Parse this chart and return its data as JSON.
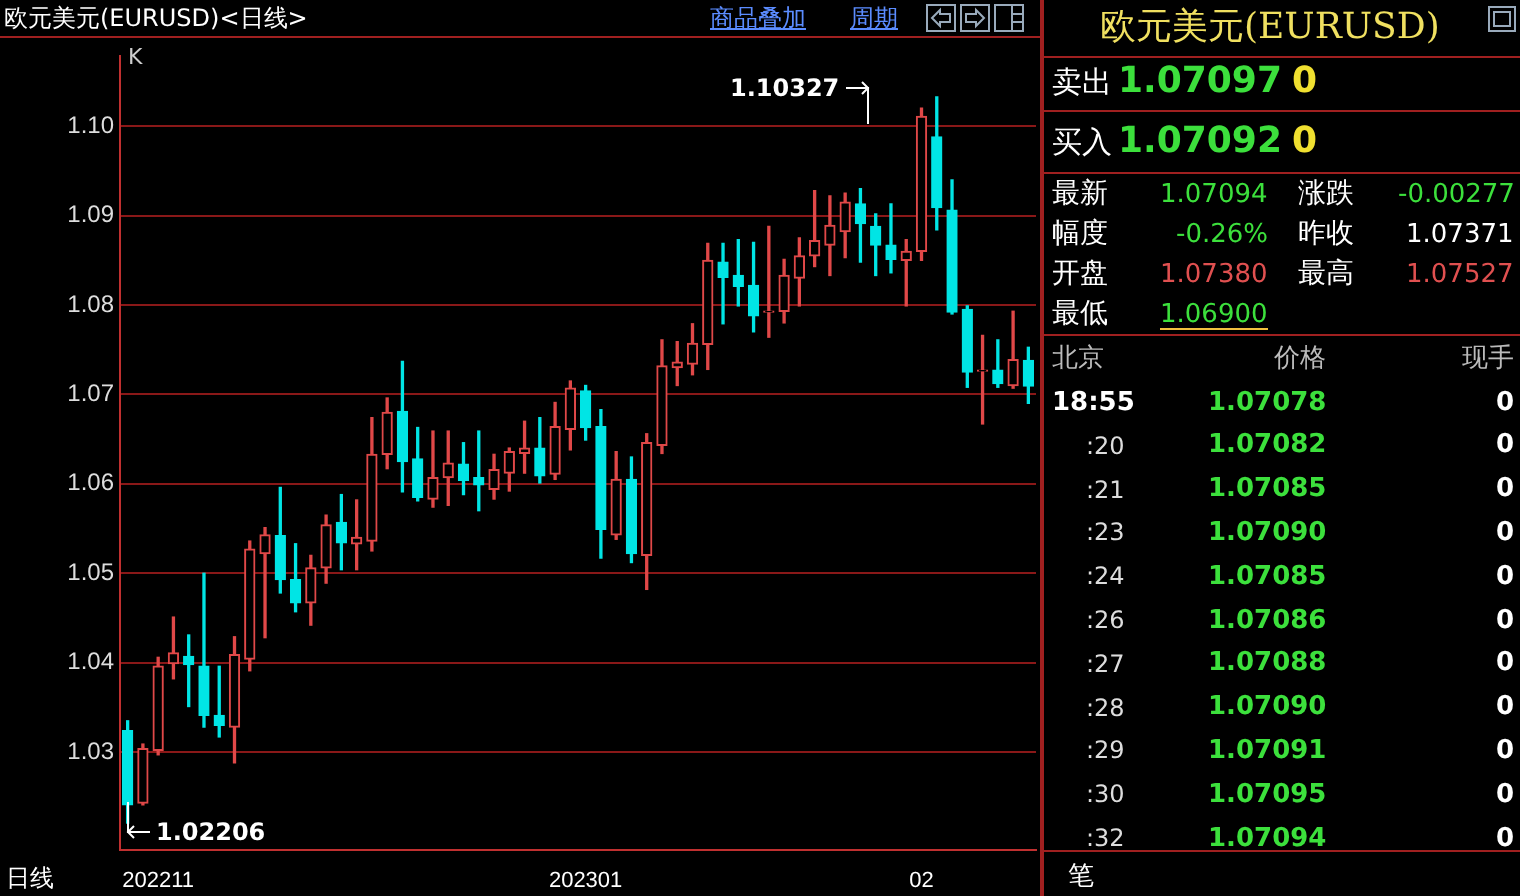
{
  "chart_data": [
    {
      "type": "candlestick",
      "title": "欧元美元(EURUSD)<日线>",
      "categories": [
        null,
        null,
        "202211",
        null,
        null,
        null,
        null,
        null,
        null,
        null,
        null,
        null,
        null,
        null,
        null,
        null,
        null,
        null,
        null,
        null,
        null,
        null,
        null,
        null,
        null,
        null,
        null,
        null,
        null,
        null,
        "202301",
        null,
        null,
        null,
        null,
        null,
        null,
        null,
        null,
        null,
        null,
        null,
        null,
        null,
        null,
        null,
        null,
        null,
        null,
        null,
        null,
        null,
        "02",
        null,
        null,
        null,
        null,
        null,
        null,
        null
      ],
      "ohlc": [
        [
          1.0324,
          1.0335,
          1.02206,
          1.0241
        ],
        [
          1.0243,
          1.0309,
          1.0241,
          1.0304
        ],
        [
          1.0302,
          1.0406,
          1.0297,
          1.0396
        ],
        [
          1.0399,
          1.0451,
          1.0382,
          1.0411
        ],
        [
          1.0407,
          1.0431,
          1.0351,
          1.0398
        ],
        [
          1.0396,
          1.05,
          1.0328,
          1.0341
        ],
        [
          1.0341,
          1.0396,
          1.0317,
          1.033
        ],
        [
          1.0328,
          1.0429,
          1.0288,
          1.0409
        ],
        [
          1.0404,
          1.0536,
          1.0391,
          1.0527
        ],
        [
          1.0522,
          1.0551,
          1.0428,
          1.0543
        ],
        [
          1.0542,
          1.0596,
          1.0478,
          1.0493
        ],
        [
          1.0493,
          1.0533,
          1.0457,
          1.0467
        ],
        [
          1.0467,
          1.052,
          1.0442,
          1.0506
        ],
        [
          1.0506,
          1.0565,
          1.0489,
          1.0554
        ],
        [
          1.0557,
          1.0588,
          1.0504,
          1.0534
        ],
        [
          1.0533,
          1.0582,
          1.0504,
          1.054
        ],
        [
          1.0536,
          1.0674,
          1.0525,
          1.0633
        ],
        [
          1.0633,
          1.0696,
          1.0617,
          1.068
        ],
        [
          1.0681,
          1.0737,
          1.0591,
          1.0625
        ],
        [
          1.0628,
          1.0663,
          1.0581,
          1.0585
        ],
        [
          1.0583,
          1.0659,
          1.0574,
          1.0607
        ],
        [
          1.0607,
          1.0659,
          1.0576,
          1.0623
        ],
        [
          1.0622,
          1.0646,
          1.0588,
          1.0604
        ],
        [
          1.0607,
          1.0659,
          1.057,
          1.0599
        ],
        [
          1.0594,
          1.0633,
          1.0583,
          1.0616
        ],
        [
          1.0612,
          1.064,
          1.0592,
          1.0636
        ],
        [
          1.0634,
          1.067,
          1.0612,
          1.064
        ],
        [
          1.064,
          1.0674,
          1.0601,
          1.0609
        ],
        [
          1.0611,
          1.0691,
          1.0605,
          1.0664
        ],
        [
          1.0661,
          1.0715,
          1.0638,
          1.0707
        ],
        [
          1.0704,
          1.071,
          1.0649,
          1.0663
        ],
        [
          1.0664,
          1.0683,
          1.0517,
          1.0549
        ],
        [
          1.0543,
          1.0636,
          1.0538,
          1.0605
        ],
        [
          1.0605,
          1.063,
          1.0512,
          1.0522
        ],
        [
          1.052,
          1.0656,
          1.0482,
          1.0646
        ],
        [
          1.0643,
          1.0761,
          1.0634,
          1.0732
        ],
        [
          1.073,
          1.0759,
          1.071,
          1.0736
        ],
        [
          1.0734,
          1.0779,
          1.0722,
          1.0757
        ],
        [
          1.0756,
          1.0869,
          1.0728,
          1.085
        ],
        [
          1.0848,
          1.0869,
          1.0779,
          1.0831
        ],
        [
          1.0833,
          1.0873,
          1.0799,
          1.0821
        ],
        [
          1.0822,
          1.087,
          1.077,
          1.0788
        ],
        [
          1.0792,
          1.0888,
          1.0764,
          1.0793
        ],
        [
          1.0793,
          1.0851,
          1.078,
          1.0833
        ],
        [
          1.083,
          1.0875,
          1.0799,
          1.0855
        ],
        [
          1.0855,
          1.0928,
          1.0843,
          1.0872
        ],
        [
          1.0867,
          1.0922,
          1.0833,
          1.0889
        ],
        [
          1.0882,
          1.0925,
          1.0853,
          1.0915
        ],
        [
          1.0913,
          1.093,
          1.0848,
          1.0891
        ],
        [
          1.0888,
          1.0902,
          1.0833,
          1.0867
        ],
        [
          1.0867,
          1.0913,
          1.0836,
          1.0851
        ],
        [
          1.085,
          1.0873,
          1.0799,
          1.086
        ],
        [
          1.086,
          1.102,
          1.085,
          1.1011
        ],
        [
          1.0988,
          1.10327,
          1.0884,
          1.0909
        ],
        [
          1.0906,
          1.094,
          1.079,
          1.0792
        ],
        [
          1.0795,
          1.0799,
          1.0708,
          1.0725
        ],
        [
          1.0726,
          1.0766,
          1.0667,
          1.0727
        ],
        [
          1.0727,
          1.0761,
          1.0708,
          1.0712
        ],
        [
          1.071,
          1.0793,
          1.0707,
          1.0739
        ],
        [
          1.0738,
          1.07527,
          1.069,
          1.07094
        ]
      ],
      "colors": [
        "#00e5e5",
        "#e04848",
        "#e04848",
        "#e04848",
        "#00e5e5",
        "#00e5e5",
        "#00e5e5",
        "#e04848",
        "#e04848",
        "#e04848",
        "#00e5e5",
        "#00e5e5",
        "#e04848",
        "#e04848",
        "#00e5e5",
        "#e04848",
        "#e04848",
        "#e04848",
        "#00e5e5",
        "#00e5e5",
        "#e04848",
        "#e04848",
        "#00e5e5",
        "#00e5e5",
        "#e04848",
        "#e04848",
        "#e04848",
        "#00e5e5",
        "#e04848",
        "#e04848",
        "#00e5e5",
        "#00e5e5",
        "#e04848",
        "#00e5e5",
        "#e04848",
        "#e04848",
        "#e04848",
        "#e04848",
        "#e04848",
        "#00e5e5",
        "#00e5e5",
        "#00e5e5",
        "#e04848",
        "#e04848",
        "#e04848",
        "#e04848",
        "#e04848",
        "#e04848",
        "#00e5e5",
        "#00e5e5",
        "#00e5e5",
        "#e04848",
        "#e04848",
        "#00e5e5",
        "#00e5e5",
        "#00e5e5",
        "#e04848",
        "#00e5e5",
        "#e04848",
        "#00e5e5"
      ],
      "ylim": [
        1.0191,
        1.1078
      ],
      "yticks": [
        1.03,
        1.04,
        1.05,
        1.06,
        1.07,
        1.08,
        1.09,
        {
          "value": 1.1,
          "label": "1.10"
        }
      ],
      "grid": "y",
      "annotations": [
        "K",
        "日线",
        "商品叠加",
        "周期",
        "1.10327",
        "1.02206"
      ]
    },
    {
      "type": "other",
      "title": "欧元美元(EURUSD)",
      "annotations": [
        "卖出",
        "1.07097",
        "0",
        "买入",
        "1.07092",
        "0",
        "最新",
        "1.07094",
        "涨跌",
        "-0.00277",
        "幅度",
        "-0.26%",
        "昨收",
        "1.07371",
        "开盘",
        "1.07380",
        "最高",
        "1.07527",
        "最低",
        "1.06900",
        "北京",
        "价格",
        "现手",
        "18:55",
        "1.07078",
        "0",
        ":20",
        "1.07082",
        "0",
        ":21",
        "1.07085",
        "0",
        ":23",
        "1.07090",
        "0",
        ":24",
        "1.07085",
        "0",
        ":26",
        "1.07086",
        "0",
        ":27",
        "1.07088",
        "0",
        ":28",
        "1.07090",
        "0",
        ":29",
        "1.07091",
        "0",
        ":30",
        "1.07095",
        "0",
        ":32",
        "1.07094",
        "0",
        "笔"
      ]
    }
  ]
}
